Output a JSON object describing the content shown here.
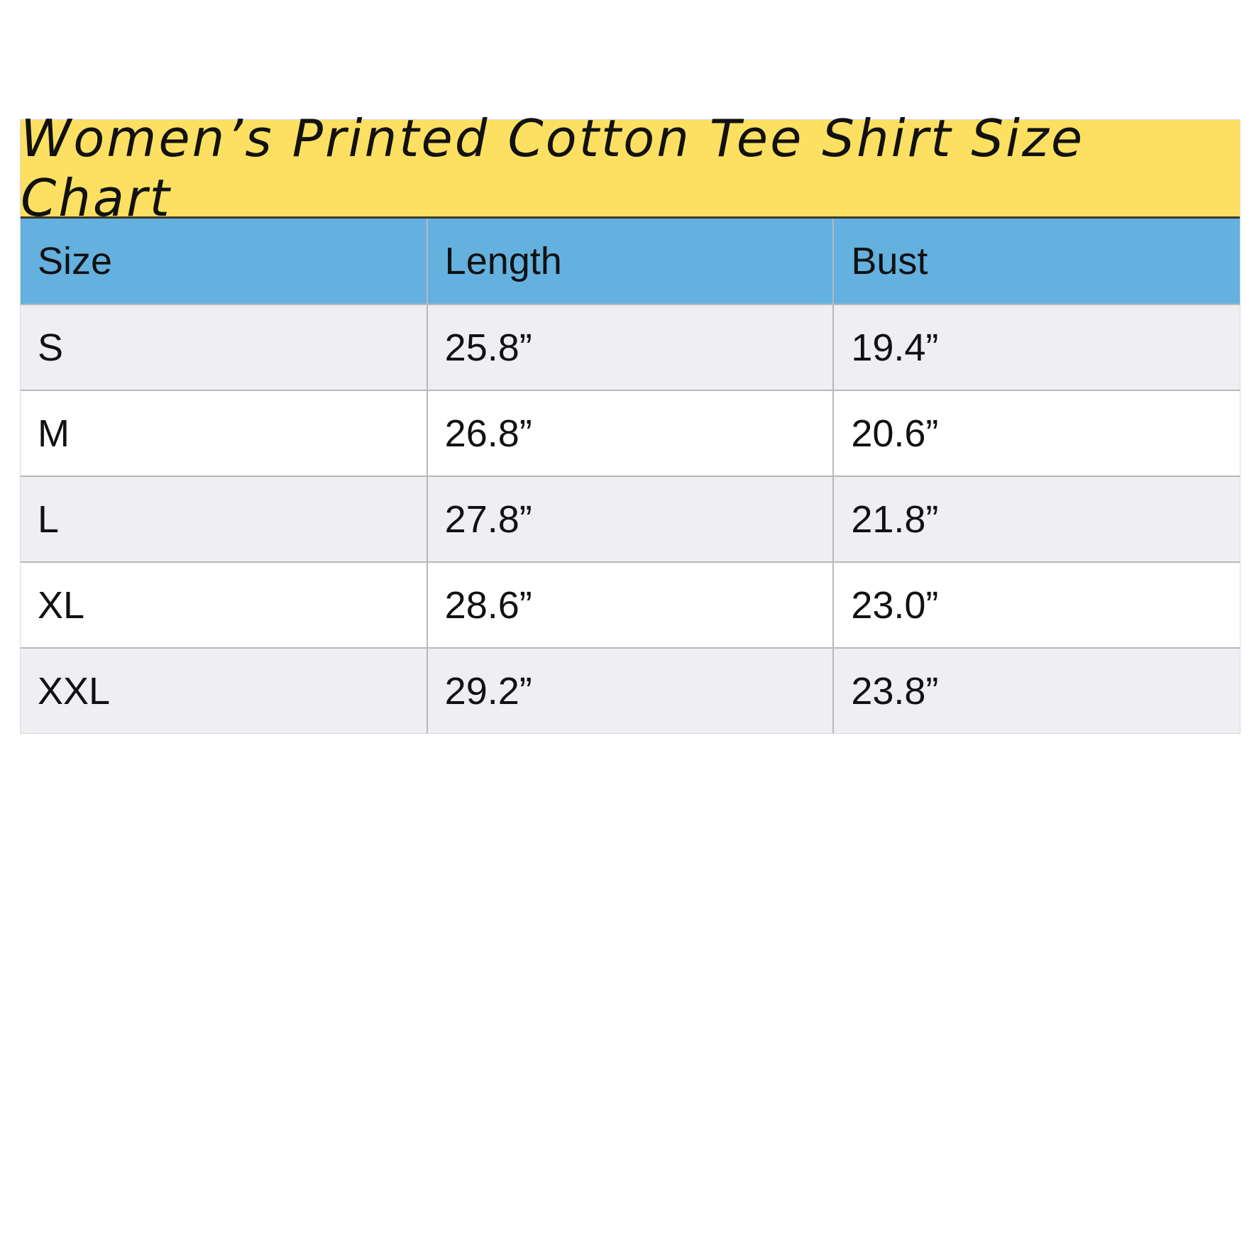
{
  "title": "Women’s Printed Cotton Tee Shirt Size Chart",
  "colors": {
    "title_bg": "#fde062",
    "header_bg": "#64b1e0",
    "row_alt_bg": "#efeef2"
  },
  "headers": [
    "Size",
    "Length",
    "Bust"
  ],
  "rows": [
    [
      "S",
      "25.8”",
      "19.4”"
    ],
    [
      "M",
      "26.8”",
      "20.6”"
    ],
    [
      "L",
      "27.8”",
      "21.8”"
    ],
    [
      "XL",
      "28.6”",
      "23.0”"
    ],
    [
      "XXL",
      "29.2”",
      "23.8”"
    ]
  ]
}
